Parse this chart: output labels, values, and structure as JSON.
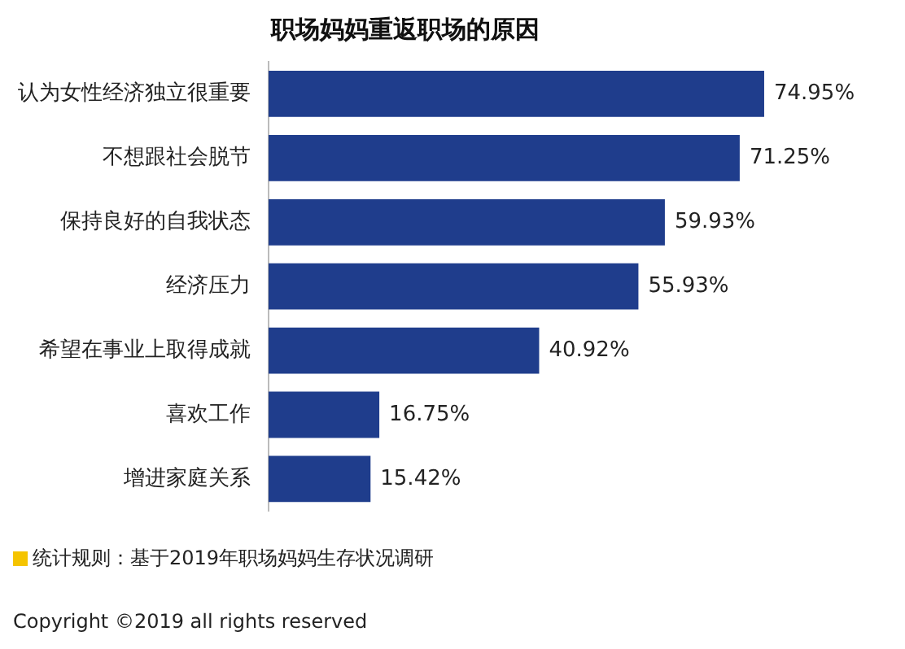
{
  "chart_data": {
    "type": "bar",
    "orientation": "horizontal",
    "title": "职场妈妈重返职场的原因",
    "categories": [
      "认为女性经济独立很重要",
      "不想跟社会脱节",
      "保持良好的自我状态",
      "经济压力",
      "希望在事业上取得成就",
      "喜欢工作",
      "增进家庭关系"
    ],
    "values": [
      74.95,
      71.25,
      59.93,
      55.93,
      40.92,
      16.75,
      15.42
    ],
    "value_labels": [
      "74.95%",
      "71.25%",
      "59.93%",
      "55.93%",
      "40.92%",
      "16.75%",
      "15.42%"
    ],
    "color": "#1f3d8c",
    "legend": false,
    "tick_labels": "y",
    "annotations": [
      "统计规则：基于2019年职场妈妈生存状况调研",
      "Copyright ©2019 all rights reserved"
    ]
  }
}
